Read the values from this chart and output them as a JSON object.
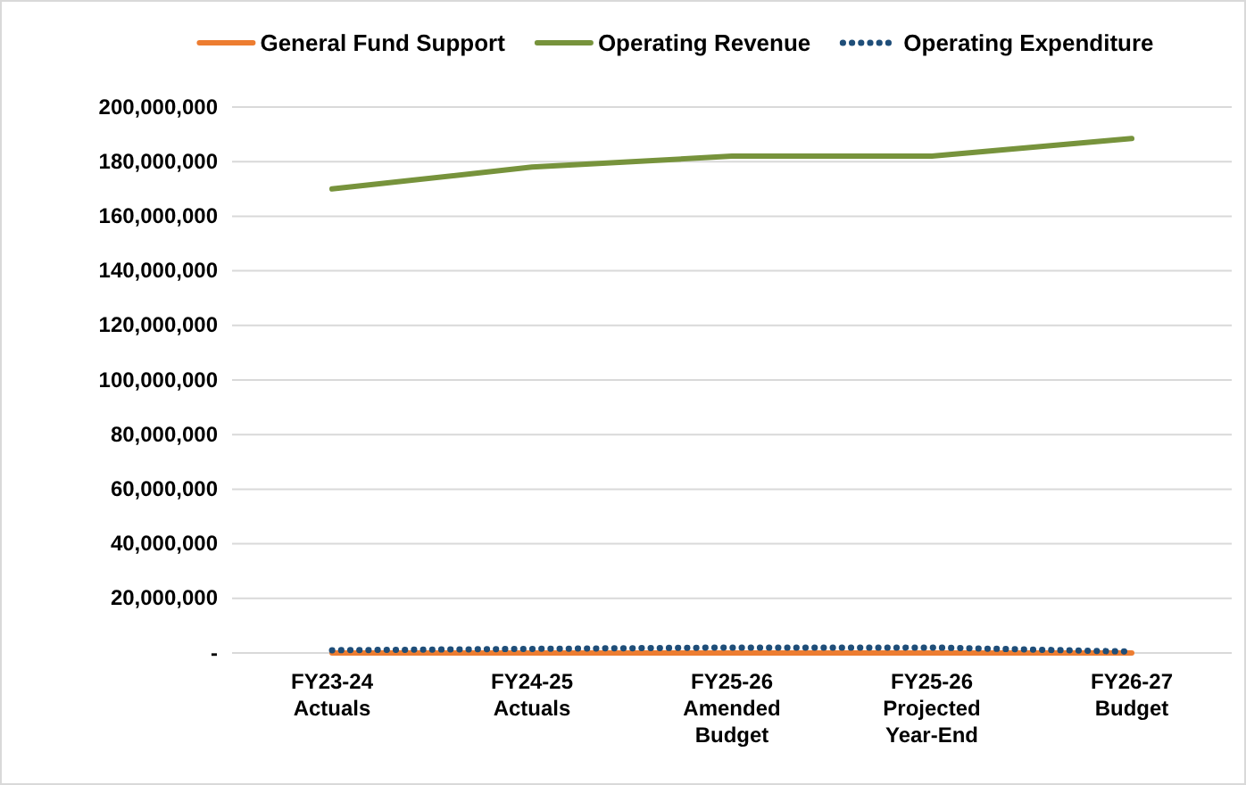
{
  "chart_data": {
    "type": "line",
    "categories": [
      "FY23-24\nActuals",
      "FY24-25\nActuals",
      "FY25-26\nAmended\nBudget",
      "FY25-26\nProjected\nYear-End",
      "FY26-27\nBudget"
    ],
    "series": [
      {
        "name": "General Fund Support",
        "color": "#ed7d31",
        "values": [
          0,
          0,
          0,
          0,
          0
        ]
      },
      {
        "name": "Operating Revenue",
        "color": "#77933c",
        "values": [
          170000000,
          178000000,
          182000000,
          182000000,
          188500000
        ]
      },
      {
        "name": "Operating Expenditure",
        "color": "#1f4e79",
        "line_style": "dotted",
        "values": [
          1000000,
          1500000,
          2000000,
          2000000,
          500000
        ]
      }
    ],
    "ylim": [
      0,
      200000000
    ],
    "yticks": [
      {
        "value": 0,
        "label": "-"
      },
      {
        "value": 20000000,
        "label": "20,000,000"
      },
      {
        "value": 40000000,
        "label": "40,000,000"
      },
      {
        "value": 60000000,
        "label": "60,000,000"
      },
      {
        "value": 80000000,
        "label": "80,000,000"
      },
      {
        "value": 100000000,
        "label": "100,000,000"
      },
      {
        "value": 120000000,
        "label": "120,000,000"
      },
      {
        "value": 140000000,
        "label": "140,000,000"
      },
      {
        "value": 160000000,
        "label": "160,000,000"
      },
      {
        "value": 180000000,
        "label": "180,000,000"
      },
      {
        "value": 200000000,
        "label": "200,000,000"
      }
    ],
    "grid": "y",
    "legend": "top",
    "line_style": "solid",
    "marker": "none"
  }
}
